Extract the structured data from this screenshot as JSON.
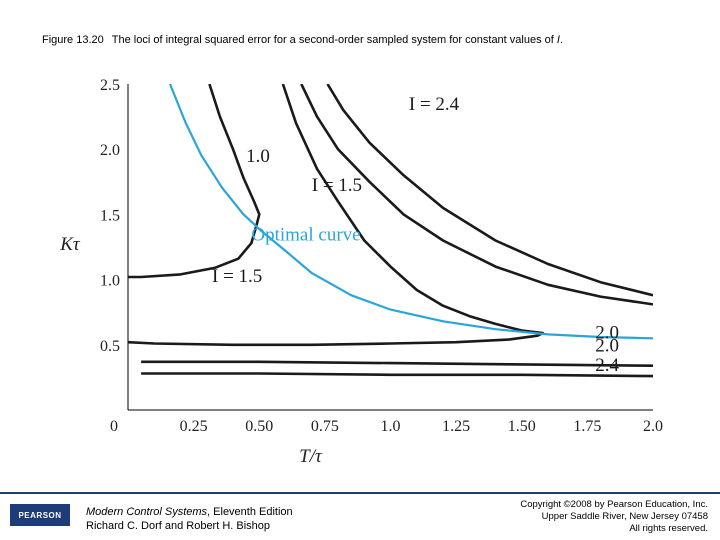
{
  "caption": {
    "figure_number": "Figure 13.20",
    "text_before": "The loci of integral squared error for a second-order sampled system for constant values of ",
    "symbol": "I",
    "text_after": "."
  },
  "chart_data": {
    "type": "line",
    "xlabel": "T/τ",
    "ylabel": "Kτ",
    "xlim": [
      0,
      2.0
    ],
    "ylim": [
      0,
      2.5
    ],
    "x_ticks": [
      "0",
      "0.25",
      "0.50",
      "0.75",
      "1.0",
      "1.25",
      "1.50",
      "1.75",
      "2.0"
    ],
    "x_tick_values": [
      0,
      0.25,
      0.5,
      0.75,
      1.0,
      1.25,
      1.5,
      1.75,
      2.0
    ],
    "y_ticks": [
      "0",
      "0.5",
      "1.0",
      "1.5",
      "2.0",
      "2.5"
    ],
    "y_tick_values": [
      0,
      0.5,
      1.0,
      1.5,
      2.0,
      2.5
    ],
    "grid": false,
    "series": [
      {
        "name": "I = 1.0",
        "color": "#1a1a1a",
        "points": [
          [
            0.31,
            2.5
          ],
          [
            0.35,
            2.25
          ],
          [
            0.4,
            2.0
          ],
          [
            0.44,
            1.78
          ],
          [
            0.48,
            1.6
          ],
          [
            0.5,
            1.5
          ],
          [
            0.49,
            1.42
          ],
          [
            0.47,
            1.28
          ],
          [
            0.42,
            1.16
          ],
          [
            0.33,
            1.09
          ],
          [
            0.2,
            1.04
          ],
          [
            0.05,
            1.02
          ],
          [
            0,
            1.02
          ]
        ]
      },
      {
        "name": "I = 1.5",
        "color": "#1a1a1a",
        "points": [
          [
            0.59,
            2.5
          ],
          [
            0.64,
            2.2
          ],
          [
            0.72,
            1.85
          ],
          [
            0.8,
            1.6
          ],
          [
            0.9,
            1.3
          ],
          [
            1.0,
            1.1
          ],
          [
            1.1,
            0.92
          ],
          [
            1.2,
            0.8
          ],
          [
            1.3,
            0.72
          ],
          [
            1.4,
            0.66
          ],
          [
            1.5,
            0.61
          ],
          [
            1.58,
            0.59
          ],
          [
            1.56,
            0.57
          ],
          [
            1.45,
            0.54
          ],
          [
            1.25,
            0.52
          ],
          [
            1.0,
            0.51
          ],
          [
            0.7,
            0.5
          ],
          [
            0.4,
            0.5
          ],
          [
            0.1,
            0.51
          ],
          [
            0,
            0.52
          ]
        ]
      },
      {
        "name": "I = 2.0",
        "color": "#1a1a1a",
        "points": [
          [
            0.66,
            2.5
          ],
          [
            0.72,
            2.25
          ],
          [
            0.8,
            2.0
          ],
          [
            0.92,
            1.75
          ],
          [
            1.05,
            1.5
          ],
          [
            1.2,
            1.3
          ],
          [
            1.4,
            1.1
          ],
          [
            1.6,
            0.96
          ],
          [
            1.8,
            0.87
          ],
          [
            2.0,
            0.81
          ]
        ]
      },
      {
        "name": "I = 2.4",
        "color": "#1a1a1a",
        "points": [
          [
            0.76,
            2.5
          ],
          [
            0.82,
            2.3
          ],
          [
            0.92,
            2.05
          ],
          [
            1.05,
            1.8
          ],
          [
            1.2,
            1.55
          ],
          [
            1.4,
            1.3
          ],
          [
            1.6,
            1.12
          ],
          [
            1.8,
            0.98
          ],
          [
            2.0,
            0.88
          ]
        ]
      },
      {
        "name": "I = 2.0",
        "color": "#1a1a1a",
        "points": [
          [
            0.05,
            0.37
          ],
          [
            0.5,
            0.37
          ],
          [
            1.0,
            0.36
          ],
          [
            1.5,
            0.35
          ],
          [
            2.0,
            0.34
          ]
        ]
      },
      {
        "name": "I = 2.4",
        "color": "#1a1a1a",
        "points": [
          [
            0.05,
            0.28
          ],
          [
            0.5,
            0.28
          ],
          [
            1.0,
            0.27
          ],
          [
            1.5,
            0.27
          ],
          [
            2.0,
            0.26
          ]
        ]
      },
      {
        "name": "Optimal curve",
        "color": "#2aa5d8",
        "points": [
          [
            0.16,
            2.5
          ],
          [
            0.22,
            2.2
          ],
          [
            0.28,
            1.95
          ],
          [
            0.36,
            1.7
          ],
          [
            0.44,
            1.5
          ],
          [
            0.51,
            1.37
          ],
          [
            0.6,
            1.22
          ],
          [
            0.7,
            1.05
          ],
          [
            0.85,
            0.88
          ],
          [
            1.0,
            0.77
          ],
          [
            1.2,
            0.68
          ],
          [
            1.4,
            0.62
          ],
          [
            1.6,
            0.58
          ],
          [
            1.8,
            0.56
          ],
          [
            2.0,
            0.55
          ]
        ]
      }
    ],
    "annotations": [
      {
        "text": "1.0",
        "x": 0.45,
        "y": 1.9,
        "color": "#1a1a1a"
      },
      {
        "text": "I = 2.4",
        "x": 1.07,
        "y": 2.3,
        "color": "#1a1a1a"
      },
      {
        "text": "I = 1.5",
        "x": 0.7,
        "y": 1.68,
        "color": "#1a1a1a"
      },
      {
        "text": "Optimal curve",
        "x": 0.47,
        "y": 1.3,
        "color": "#2aa5d8"
      },
      {
        "text": "I = 1.5",
        "x": 0.32,
        "y": 0.98,
        "color": "#1a1a1a"
      },
      {
        "text": "2.0",
        "x": 1.78,
        "y": 0.55,
        "color": "#1a1a1a"
      },
      {
        "text": "2.0",
        "x": 1.78,
        "y": 0.45,
        "color": "#1a1a1a"
      },
      {
        "text": "2.4",
        "x": 1.78,
        "y": 0.3,
        "color": "#1a1a1a"
      }
    ]
  },
  "footer": {
    "logo_text": "PEARSON",
    "book_title": "Modern Control Systems",
    "book_edition": ", Eleventh Edition",
    "book_authors": "Richard C. Dorf and Robert H. Bishop",
    "copyright_line1": "Copyright ©2008 by Pearson Education, Inc.",
    "copyright_line2": "Upper Saddle River, New Jersey 07458",
    "copyright_line3": "All rights reserved.",
    "accent_color": "#1d3c78"
  }
}
